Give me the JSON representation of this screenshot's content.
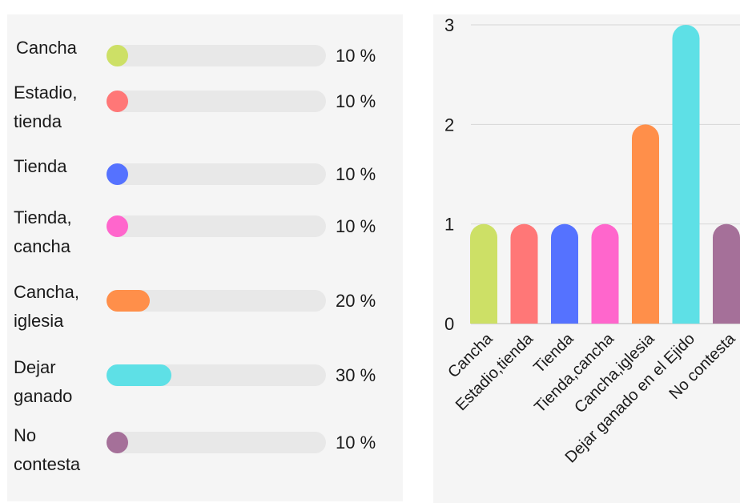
{
  "left": {
    "items": [
      {
        "label": "Cancha",
        "percent": 10,
        "percent_text": "10 %",
        "color": "#cde066"
      },
      {
        "label": "Estadio, tienda",
        "percent": 10,
        "percent_text": "10 %",
        "color": "#ff7777"
      },
      {
        "label": "Tienda",
        "percent": 10,
        "percent_text": "10 %",
        "color": "#5572ff"
      },
      {
        "label": "Tienda, cancha",
        "percent": 10,
        "percent_text": "10 %",
        "color": "#ff66cc"
      },
      {
        "label": "Cancha, iglesia",
        "percent": 20,
        "percent_text": "20 %",
        "color": "#ff8f4a"
      },
      {
        "label": "Dejar ganado",
        "percent": 30,
        "percent_text": "30 %",
        "color": "#5ee0e6"
      },
      {
        "label": "No contesta",
        "percent": 10,
        "percent_text": "10 %",
        "color": "#a57099"
      }
    ]
  },
  "chart_data": {
    "type": "bar",
    "categories": [
      "Cancha",
      "Estadio,tienda",
      "Tienda",
      "Tienda,cancha",
      "Cancha,iglesia",
      "Dejar ganado en el Ejido",
      "No contesta"
    ],
    "values": [
      1,
      1,
      1,
      1,
      2,
      3,
      1
    ],
    "colors": [
      "#cde066",
      "#ff7777",
      "#5572ff",
      "#ff66cc",
      "#ff8f4a",
      "#5ee0e6",
      "#a57099"
    ],
    "yticks": [
      "0",
      "1",
      "2",
      "3"
    ],
    "ylim": [
      0,
      3
    ],
    "grid": true
  }
}
